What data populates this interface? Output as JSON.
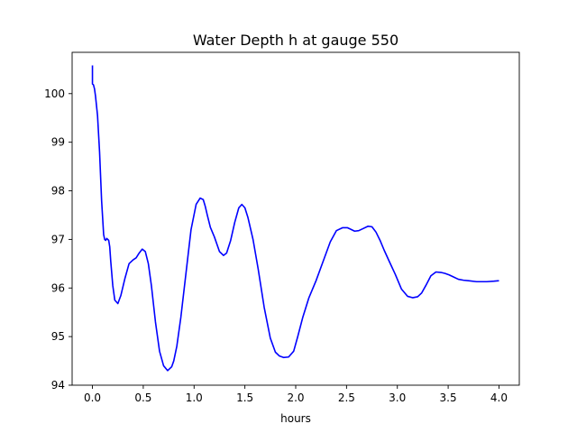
{
  "chart_data": {
    "type": "line",
    "title": "Water Depth h at gauge 550",
    "xlabel": "hours",
    "ylabel": "",
    "xlim": [
      -0.2,
      4.2
    ],
    "ylim": [
      94,
      100.85
    ],
    "xticks": [
      0.0,
      0.5,
      1.0,
      1.5,
      2.0,
      2.5,
      3.0,
      3.5,
      4.0
    ],
    "xtick_labels": [
      "0.0",
      "0.5",
      "1.0",
      "1.5",
      "2.0",
      "2.5",
      "3.0",
      "3.5",
      "4.0"
    ],
    "yticks": [
      94,
      95,
      96,
      97,
      98,
      99,
      100
    ],
    "ytick_labels": [
      "94",
      "95",
      "96",
      "97",
      "98",
      "99",
      "100"
    ],
    "grid": false,
    "line_color": "#0000ff",
    "series": [
      {
        "x": [
          0.0,
          0.0,
          0.0,
          0.01,
          0.02,
          0.03,
          0.05,
          0.07,
          0.09,
          0.11,
          0.12,
          0.13,
          0.14,
          0.15,
          0.16,
          0.17,
          0.18,
          0.2,
          0.22,
          0.25,
          0.28,
          0.32,
          0.36,
          0.4,
          0.43,
          0.46,
          0.49,
          0.52,
          0.55,
          0.58,
          0.62,
          0.66,
          0.7,
          0.74,
          0.78,
          0.8,
          0.83,
          0.87,
          0.92,
          0.97,
          1.02,
          1.06,
          1.09,
          1.11,
          1.13,
          1.16,
          1.2,
          1.25,
          1.29,
          1.32,
          1.36,
          1.4,
          1.44,
          1.47,
          1.5,
          1.53,
          1.58,
          1.63,
          1.69,
          1.75,
          1.8,
          1.84,
          1.88,
          1.93,
          1.98,
          2.02,
          2.07,
          2.13,
          2.2,
          2.27,
          2.34,
          2.4,
          2.46,
          2.51,
          2.55,
          2.58,
          2.62,
          2.66,
          2.71,
          2.75,
          2.79,
          2.83,
          2.87,
          2.92,
          2.98,
          3.04,
          3.1,
          3.15,
          3.2,
          3.24,
          3.28,
          3.33,
          3.38,
          3.43,
          3.47,
          3.51,
          3.55,
          3.6,
          3.65,
          3.7,
          3.78,
          3.88,
          3.95,
          4.0
        ],
        "y": [
          100.58,
          100.25,
          100.2,
          100.18,
          100.1,
          99.95,
          99.55,
          98.8,
          97.8,
          97.1,
          97.0,
          96.98,
          97.02,
          97.0,
          96.98,
          96.85,
          96.55,
          96.05,
          95.75,
          95.68,
          95.85,
          96.2,
          96.5,
          96.58,
          96.62,
          96.72,
          96.8,
          96.75,
          96.5,
          96.05,
          95.3,
          94.7,
          94.4,
          94.3,
          94.38,
          94.5,
          94.8,
          95.4,
          96.3,
          97.2,
          97.72,
          97.85,
          97.82,
          97.68,
          97.5,
          97.25,
          97.05,
          96.75,
          96.67,
          96.72,
          96.98,
          97.35,
          97.65,
          97.72,
          97.65,
          97.45,
          97.0,
          96.4,
          95.6,
          94.97,
          94.68,
          94.6,
          94.57,
          94.58,
          94.7,
          95.0,
          95.4,
          95.8,
          96.15,
          96.55,
          96.95,
          97.18,
          97.24,
          97.24,
          97.2,
          97.17,
          97.18,
          97.22,
          97.27,
          97.26,
          97.15,
          96.98,
          96.78,
          96.55,
          96.28,
          95.98,
          95.83,
          95.8,
          95.82,
          95.9,
          96.05,
          96.25,
          96.33,
          96.32,
          96.3,
          96.27,
          96.23,
          96.18,
          96.16,
          96.15,
          96.13,
          96.13,
          96.14,
          96.15
        ]
      }
    ]
  }
}
